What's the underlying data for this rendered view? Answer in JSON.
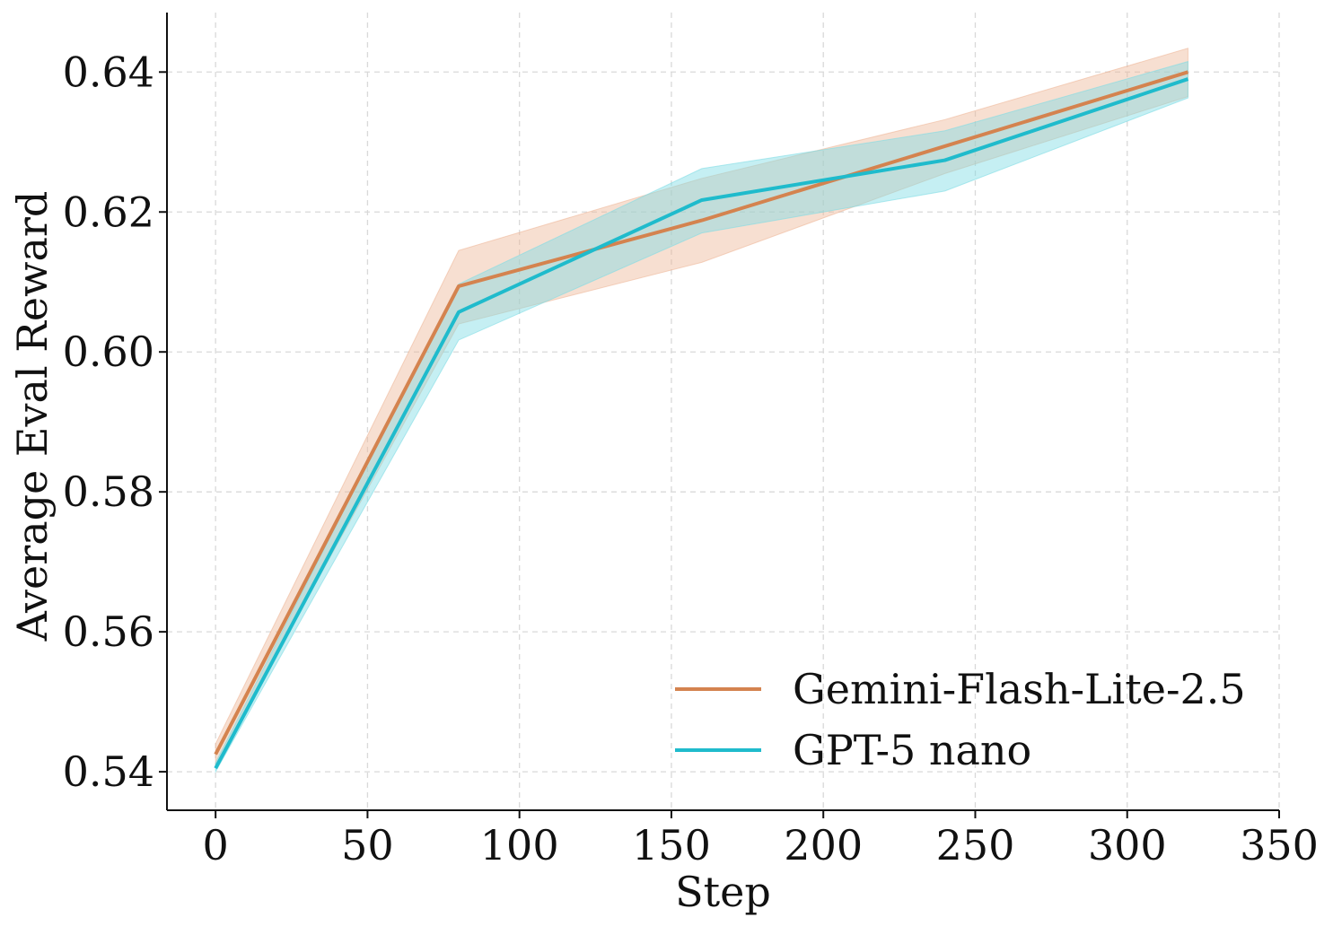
{
  "chart_data": {
    "type": "line",
    "title": "",
    "xlabel": "Step",
    "ylabel": "Average Eval Reward",
    "xlim": [
      -16,
      350
    ],
    "ylim": [
      0.5345,
      0.6485
    ],
    "xticks": [
      0,
      50,
      100,
      150,
      200,
      250,
      300,
      350
    ],
    "yticks": [
      0.54,
      0.56,
      0.58,
      0.6,
      0.62,
      0.64
    ],
    "ytick_labels": [
      "0.54",
      "0.56",
      "0.58",
      "0.60",
      "0.62",
      "0.64"
    ],
    "grid": true,
    "legend_position": "bottom-right",
    "x": [
      0,
      80,
      160,
      240,
      320
    ],
    "series": [
      {
        "name": "Gemini-Flash-Lite-2.5",
        "color": "#d4834f",
        "band_color": "#eeb899",
        "values": [
          0.5425,
          0.6094,
          0.6188,
          0.6294,
          0.64
        ],
        "lower": [
          0.541,
          0.604,
          0.6128,
          0.6255,
          0.6365
        ],
        "upper": [
          0.544,
          0.6145,
          0.6248,
          0.6332,
          0.6434
        ]
      },
      {
        "name": "GPT-5 nano",
        "color": "#1fbbcc",
        "band_color": "#7fdce4",
        "values": [
          0.5405,
          0.6057,
          0.6217,
          0.6274,
          0.639
        ],
        "lower": [
          0.54,
          0.6017,
          0.617,
          0.623,
          0.6363
        ],
        "upper": [
          0.5413,
          0.6097,
          0.6262,
          0.6316,
          0.6415
        ]
      }
    ]
  }
}
